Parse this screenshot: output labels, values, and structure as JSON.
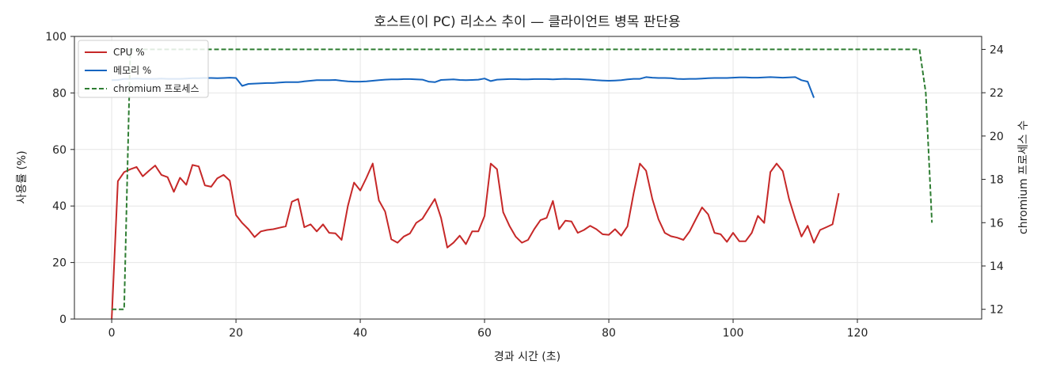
{
  "chart_data": {
    "type": "line",
    "title": "호스트(이 PC) 리소스 추이 — 클라이언트 병목 판단용",
    "xlabel": "경과 시간 (초)",
    "ylabel": "사용률 (%)",
    "y2label": "chromium 프로세스 수",
    "xlim": [
      -6,
      140
    ],
    "ylim": [
      0,
      100
    ],
    "y2lim": [
      11.55,
      24.6
    ],
    "xticks": [
      0,
      20,
      40,
      60,
      80,
      100,
      120
    ],
    "yticks": [
      0,
      20,
      40,
      60,
      80,
      100
    ],
    "y2ticks": [
      12,
      14,
      16,
      18,
      20,
      22,
      24
    ],
    "grid": true,
    "legend_position": "top-left",
    "series": [
      {
        "name": "CPU %",
        "color": "#c62828",
        "style": "solid",
        "axis": "left",
        "points": [
          [
            0,
            0
          ],
          [
            1,
            48.8
          ],
          [
            2,
            52
          ],
          [
            3,
            53
          ],
          [
            4,
            53.8
          ],
          [
            5,
            50.5
          ],
          [
            6,
            52.5
          ],
          [
            7,
            54.3
          ],
          [
            8,
            51
          ],
          [
            9,
            50.2
          ],
          [
            10,
            45
          ],
          [
            11,
            50
          ],
          [
            12,
            47.5
          ],
          [
            13,
            54.5
          ],
          [
            14,
            54
          ],
          [
            15,
            47.3
          ],
          [
            16,
            46.8
          ],
          [
            17,
            49.8
          ],
          [
            18,
            51
          ],
          [
            19,
            49
          ],
          [
            20,
            36.8
          ],
          [
            21,
            34
          ],
          [
            22,
            31.8
          ],
          [
            23,
            29
          ],
          [
            24,
            31
          ],
          [
            25,
            31.5
          ],
          [
            26,
            31.8
          ],
          [
            27,
            32.3
          ],
          [
            28,
            32.8
          ],
          [
            29,
            41.5
          ],
          [
            30,
            42.5
          ],
          [
            31,
            32.5
          ],
          [
            32,
            33.5
          ],
          [
            33,
            31
          ],
          [
            34,
            33.5
          ],
          [
            35,
            30.5
          ],
          [
            36,
            30.3
          ],
          [
            37,
            28
          ],
          [
            38,
            40
          ],
          [
            39,
            48.3
          ],
          [
            40,
            45.5
          ],
          [
            41,
            50
          ],
          [
            42,
            55
          ],
          [
            43,
            42
          ],
          [
            44,
            38
          ],
          [
            45,
            28.2
          ],
          [
            46,
            27
          ],
          [
            47,
            29.2
          ],
          [
            48,
            30.3
          ],
          [
            49,
            34
          ],
          [
            50,
            35.5
          ],
          [
            51,
            39
          ],
          [
            52,
            42.5
          ],
          [
            53,
            35.8
          ],
          [
            54,
            25.3
          ],
          [
            55,
            27
          ],
          [
            56,
            29.5
          ],
          [
            57,
            26.5
          ],
          [
            58,
            31
          ],
          [
            59,
            31
          ],
          [
            60,
            36.5
          ],
          [
            61,
            55
          ],
          [
            62,
            53
          ],
          [
            63,
            37.8
          ],
          [
            64,
            33
          ],
          [
            65,
            29.2
          ],
          [
            66,
            27
          ],
          [
            67,
            28
          ],
          [
            68,
            31.8
          ],
          [
            69,
            35
          ],
          [
            70,
            35.8
          ],
          [
            71,
            41.8
          ],
          [
            72,
            31.8
          ],
          [
            73,
            34.8
          ],
          [
            74,
            34.5
          ],
          [
            75,
            30.5
          ],
          [
            76,
            31.5
          ],
          [
            77,
            33
          ],
          [
            78,
            31.8
          ],
          [
            79,
            30
          ],
          [
            80,
            29.8
          ],
          [
            81,
            31.8
          ],
          [
            82,
            29.5
          ],
          [
            83,
            32.8
          ],
          [
            84,
            44.5
          ],
          [
            85,
            55
          ],
          [
            86,
            52.5
          ],
          [
            87,
            42.5
          ],
          [
            88,
            35.3
          ],
          [
            89,
            30.5
          ],
          [
            90,
            29.3
          ],
          [
            91,
            28.8
          ],
          [
            92,
            28
          ],
          [
            93,
            31
          ],
          [
            94,
            35.3
          ],
          [
            95,
            39.5
          ],
          [
            96,
            37
          ],
          [
            97,
            30.5
          ],
          [
            98,
            30
          ],
          [
            99,
            27.3
          ],
          [
            100,
            30.5
          ],
          [
            101,
            27.5
          ],
          [
            102,
            27.5
          ],
          [
            103,
            30.5
          ],
          [
            104,
            36.5
          ],
          [
            105,
            34
          ],
          [
            106,
            52
          ],
          [
            107,
            55
          ],
          [
            108,
            52.3
          ],
          [
            109,
            42.5
          ],
          [
            110,
            35.5
          ],
          [
            111,
            29.2
          ],
          [
            112,
            33
          ],
          [
            113,
            27
          ],
          [
            114,
            31.5
          ],
          [
            115,
            32.5
          ],
          [
            116,
            33.5
          ],
          [
            117,
            44.5
          ]
        ]
      },
      {
        "name": "메모리 %",
        "color": "#1565c0",
        "style": "solid",
        "axis": "left",
        "points": [
          [
            0,
            84.5
          ],
          [
            1,
            84.6
          ],
          [
            2,
            85
          ],
          [
            3,
            85
          ],
          [
            4,
            85.1
          ],
          [
            5,
            85
          ],
          [
            6,
            85
          ],
          [
            7,
            85
          ],
          [
            8,
            85.1
          ],
          [
            9,
            85
          ],
          [
            10,
            85
          ],
          [
            11,
            85
          ],
          [
            12,
            85.1
          ],
          [
            13,
            85.2
          ],
          [
            14,
            85.2
          ],
          [
            15,
            85.3
          ],
          [
            16,
            85.3
          ],
          [
            17,
            85.2
          ],
          [
            18,
            85.3
          ],
          [
            19,
            85.4
          ],
          [
            20,
            85.3
          ],
          [
            21,
            82.5
          ],
          [
            22,
            83.2
          ],
          [
            23,
            83.3
          ],
          [
            24,
            83.4
          ],
          [
            25,
            83.5
          ],
          [
            26,
            83.5
          ],
          [
            27,
            83.7
          ],
          [
            28,
            83.8
          ],
          [
            29,
            83.8
          ],
          [
            30,
            83.8
          ],
          [
            31,
            84.1
          ],
          [
            32,
            84.3
          ],
          [
            33,
            84.5
          ],
          [
            34,
            84.5
          ],
          [
            35,
            84.5
          ],
          [
            36,
            84.6
          ],
          [
            37,
            84.3
          ],
          [
            38,
            84.1
          ],
          [
            39,
            84
          ],
          [
            40,
            84
          ],
          [
            41,
            84.1
          ],
          [
            42,
            84.3
          ],
          [
            43,
            84.5
          ],
          [
            44,
            84.7
          ],
          [
            45,
            84.8
          ],
          [
            46,
            84.8
          ],
          [
            47,
            84.9
          ],
          [
            48,
            84.9
          ],
          [
            49,
            84.8
          ],
          [
            50,
            84.7
          ],
          [
            51,
            84
          ],
          [
            52,
            83.8
          ],
          [
            53,
            84.6
          ],
          [
            54,
            84.7
          ],
          [
            55,
            84.8
          ],
          [
            56,
            84.6
          ],
          [
            57,
            84.5
          ],
          [
            58,
            84.6
          ],
          [
            59,
            84.7
          ],
          [
            60,
            85.1
          ],
          [
            61,
            84.2
          ],
          [
            62,
            84.7
          ],
          [
            63,
            84.8
          ],
          [
            64,
            84.9
          ],
          [
            65,
            84.9
          ],
          [
            66,
            84.8
          ],
          [
            67,
            84.8
          ],
          [
            68,
            84.9
          ],
          [
            69,
            84.9
          ],
          [
            70,
            84.9
          ],
          [
            71,
            84.8
          ],
          [
            72,
            84.9
          ],
          [
            73,
            85
          ],
          [
            74,
            84.9
          ],
          [
            75,
            84.9
          ],
          [
            76,
            84.8
          ],
          [
            77,
            84.7
          ],
          [
            78,
            84.5
          ],
          [
            79,
            84.4
          ],
          [
            80,
            84.3
          ],
          [
            81,
            84.4
          ],
          [
            82,
            84.5
          ],
          [
            83,
            84.8
          ],
          [
            84,
            85
          ],
          [
            85,
            85
          ],
          [
            86,
            85.6
          ],
          [
            87,
            85.4
          ],
          [
            88,
            85.3
          ],
          [
            89,
            85.3
          ],
          [
            90,
            85.2
          ],
          [
            91,
            85
          ],
          [
            92,
            84.9
          ],
          [
            93,
            85
          ],
          [
            94,
            85
          ],
          [
            95,
            85.1
          ],
          [
            96,
            85.2
          ],
          [
            97,
            85.3
          ],
          [
            98,
            85.3
          ],
          [
            99,
            85.3
          ],
          [
            100,
            85.4
          ],
          [
            101,
            85.5
          ],
          [
            102,
            85.5
          ],
          [
            103,
            85.4
          ],
          [
            104,
            85.4
          ],
          [
            105,
            85.5
          ],
          [
            106,
            85.6
          ],
          [
            107,
            85.5
          ],
          [
            108,
            85.4
          ],
          [
            109,
            85.5
          ],
          [
            110,
            85.6
          ],
          [
            111,
            84.5
          ],
          [
            112,
            84
          ],
          [
            113,
            78.3
          ]
        ]
      },
      {
        "name": "chromium 프로세스",
        "color": "#2e7d32",
        "style": "dashed",
        "axis": "right",
        "points": [
          [
            0,
            12
          ],
          [
            2,
            12
          ],
          [
            3,
            24
          ],
          [
            130,
            24
          ],
          [
            131,
            22
          ],
          [
            132,
            16
          ]
        ]
      }
    ]
  }
}
